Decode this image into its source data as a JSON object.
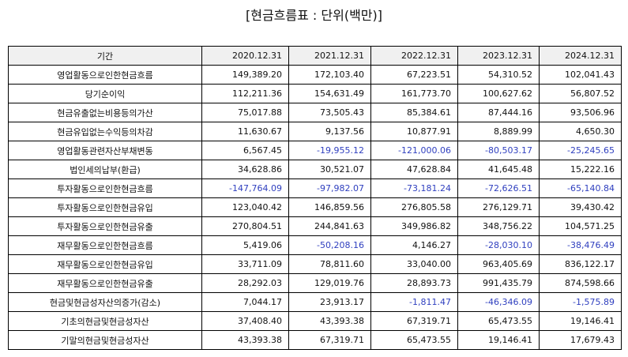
{
  "title": "[현금흐름표 : 단위(백만)]",
  "header": {
    "label": "기간",
    "periods": [
      "2020.12.31",
      "2021.12.31",
      "2022.12.31",
      "2023.12.31",
      "2024.12.31"
    ]
  },
  "colors": {
    "negative": "#2f3fbf",
    "border": "#000000",
    "header_bg": "#f0f0f0"
  },
  "rows": [
    {
      "label": "영업활동으로인한현금흐름",
      "values": [
        "149,389.20",
        "172,103.40",
        "67,223.51",
        "54,310.52",
        "102,041.43"
      ]
    },
    {
      "label": "당기순이익",
      "values": [
        "112,211.36",
        "154,631.49",
        "161,773.70",
        "100,627.62",
        "56,807.52"
      ]
    },
    {
      "label": "현금유출없는비용등의가산",
      "values": [
        "75,017.88",
        "73,505.43",
        "85,384.61",
        "87,444.16",
        "93,506.96"
      ]
    },
    {
      "label": "현금유입없는수익등의차감",
      "values": [
        "11,630.67",
        "9,137.56",
        "10,877.91",
        "8,889.99",
        "4,650.30"
      ]
    },
    {
      "label": "영업활동관련자산부채변동",
      "values": [
        "6,567.45",
        "-19,955.12",
        "-121,000.06",
        "-80,503.17",
        "-25,245.65"
      ]
    },
    {
      "label": "법인세의납부(환급)",
      "values": [
        "34,628.86",
        "30,521.07",
        "47,628.84",
        "41,645.48",
        "15,222.16"
      ]
    },
    {
      "label": "투자활동으로인한현금흐름",
      "values": [
        "-147,764.09",
        "-97,982.07",
        "-73,181.24",
        "-72,626.51",
        "-65,140.84"
      ]
    },
    {
      "label": "투자활동으로인한현금유입",
      "values": [
        "123,040.42",
        "146,859.56",
        "276,805.58",
        "276,129.71",
        "39,430.42"
      ]
    },
    {
      "label": "투자활동으로인한현금유출",
      "values": [
        "270,804.51",
        "244,841.63",
        "349,986.82",
        "348,756.22",
        "104,571.25"
      ]
    },
    {
      "label": "재무활동으로인한현금흐름",
      "values": [
        "5,419.06",
        "-50,208.16",
        "4,146.27",
        "-28,030.10",
        "-38,476.49"
      ]
    },
    {
      "label": "재무활동으로인한현금유입",
      "values": [
        "33,711.09",
        "78,811.60",
        "33,040.00",
        "963,405.69",
        "836,122.17"
      ]
    },
    {
      "label": "재무활동으로인한현금유출",
      "values": [
        "28,292.03",
        "129,019.76",
        "28,893.73",
        "991,435.79",
        "874,598.66"
      ]
    },
    {
      "label": "현금및현금성자산의증가(감소)",
      "values": [
        "7,044.17",
        "23,913.17",
        "-1,811.47",
        "-46,346.09",
        "-1,575.89"
      ]
    },
    {
      "label": "기초의현금및현금성자산",
      "values": [
        "37,408.40",
        "43,393.38",
        "67,319.71",
        "65,473.55",
        "19,146.41"
      ]
    },
    {
      "label": "기말의현금및현금성자산",
      "values": [
        "43,393.38",
        "67,319.71",
        "65,473.55",
        "19,146.41",
        "17,679.43"
      ]
    }
  ]
}
